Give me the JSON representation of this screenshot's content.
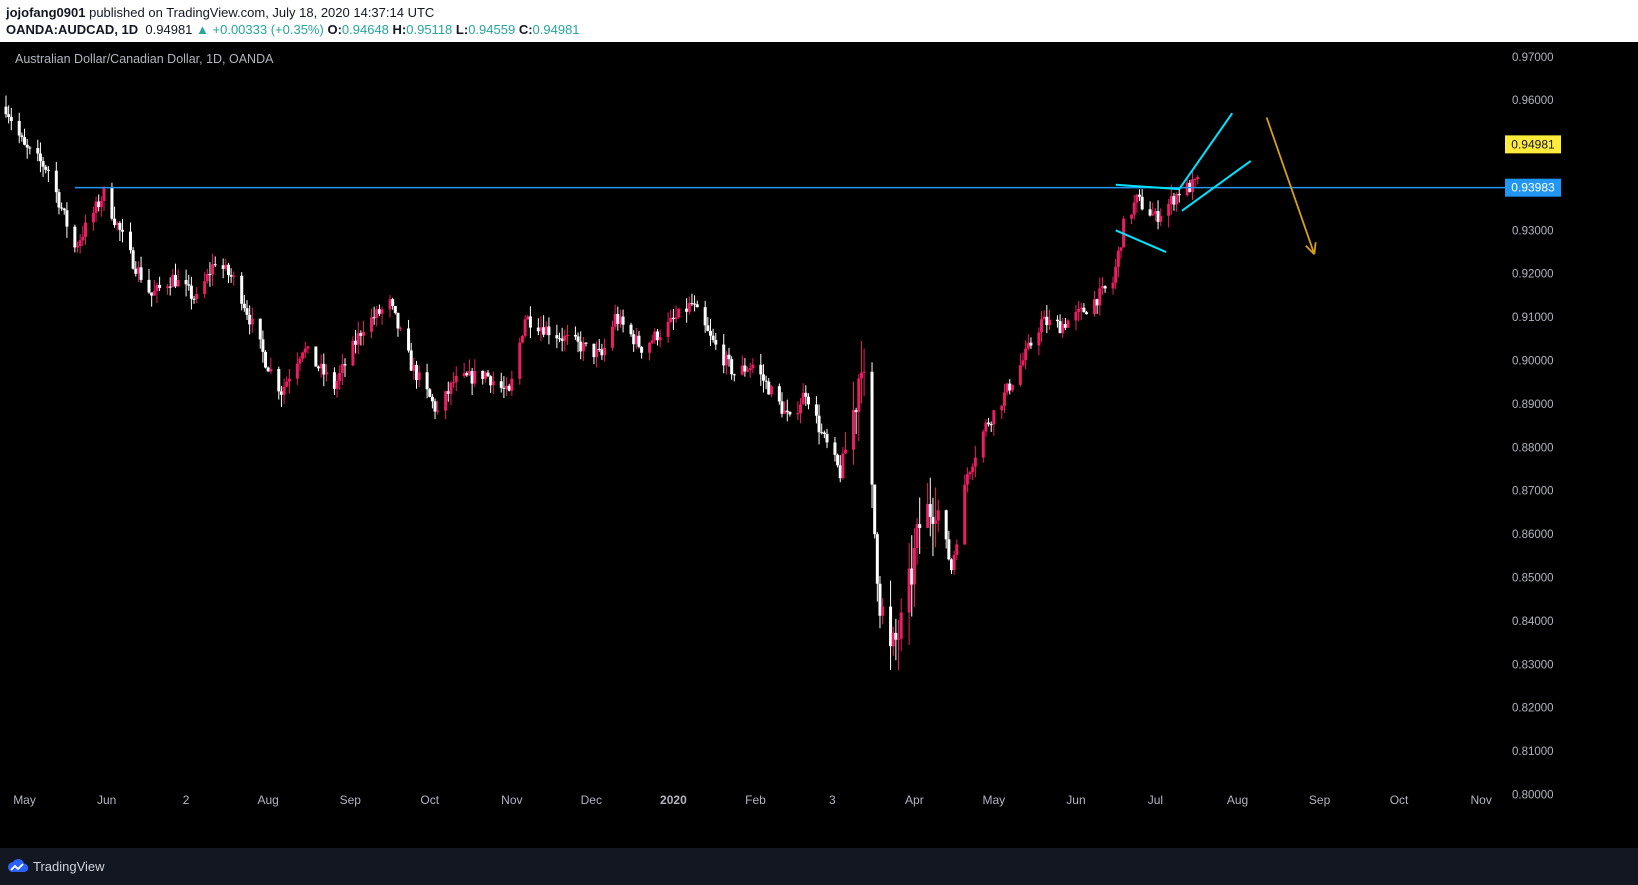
{
  "header": {
    "author": "jojofang0901",
    "published_text": "published on TradingView.com, July 18, 2020 14:37:14 UTC",
    "symbol": "OANDA:AUDCAD, 1D",
    "last": "0.94981",
    "change": "▲ +0.00333 (+0.35%)",
    "open_label": "O:",
    "open": "0.94648",
    "high_label": "H:",
    "high": "0.95118",
    "low_label": "L:",
    "low": "0.94559",
    "close_label": "C:",
    "close": "0.94981"
  },
  "chart_title": "Australian Dollar/Canadian Dollar, 1D, OANDA",
  "footer": {
    "brand": "TradingView",
    "logo_icon": "tradingview-cloud-icon"
  },
  "colors": {
    "up": "#e91e63",
    "down": "#ffffff",
    "hline": "#2196f3",
    "pattern": "#00e5ff",
    "arrow": "#d4a017",
    "last_price_bg": "#ffeb3b",
    "hline_label_bg": "#2196f3"
  },
  "chart_data": {
    "type": "candlestick",
    "title": "Australian Dollar/Canadian Dollar, 1D, OANDA",
    "ylim": [
      0.7955,
      0.9734
    ],
    "y_ticks": [
      "0.97000",
      "0.96000",
      "0.95000",
      "0.94000",
      "0.93000",
      "0.92000",
      "0.91000",
      "0.90000",
      "0.89000",
      "0.88000",
      "0.87000",
      "0.86000",
      "0.85000",
      "0.84000",
      "0.83000",
      "0.82000",
      "0.81000",
      "0.80000"
    ],
    "x_ticks": [
      "May",
      "Jun",
      "Jul",
      "Aug",
      "Sep",
      "Oct",
      "Nov",
      "Dec",
      "2020",
      "Feb",
      "Mar",
      "Apr",
      "May",
      "Jun",
      "Jul",
      "Aug",
      "Sep",
      "Oct",
      "Nov"
    ],
    "x_tick_display": [
      "May",
      "Jun",
      "2",
      "Aug",
      "Sep",
      "Oct",
      "Nov",
      "Dec",
      "2020",
      "Feb",
      "3",
      "Apr",
      "May",
      "Jun",
      "Jul",
      "Aug",
      "Sep",
      "Oct",
      "Nov"
    ],
    "x_tick_bold": [
      false,
      false,
      false,
      false,
      false,
      false,
      false,
      false,
      true,
      false,
      false,
      false,
      false,
      false,
      false,
      false,
      false,
      false,
      false
    ],
    "horizontal_line": {
      "value": 0.93983,
      "label": "0.93983"
    },
    "last_price": {
      "value": 0.94981,
      "label": "0.94981"
    },
    "trend_path": [
      [
        "2019-04-24",
        0.9585
      ],
      [
        "2019-05-01",
        0.949
      ],
      [
        "2019-05-10",
        0.944
      ],
      [
        "2019-05-20",
        0.926
      ],
      [
        "2019-05-31",
        0.9385
      ],
      [
        "2019-06-10",
        0.924
      ],
      [
        "2019-06-18",
        0.915
      ],
      [
        "2019-06-26",
        0.919
      ],
      [
        "2019-07-05",
        0.914
      ],
      [
        "2019-07-12",
        0.923
      ],
      [
        "2019-07-20",
        0.918
      ],
      [
        "2019-07-31",
        0.9
      ],
      [
        "2019-08-06",
        0.893
      ],
      [
        "2019-08-14",
        0.903
      ],
      [
        "2019-08-26",
        0.894
      ],
      [
        "2019-09-06",
        0.908
      ],
      [
        "2019-09-16",
        0.913
      ],
      [
        "2019-09-24",
        0.899
      ],
      [
        "2019-10-04",
        0.888
      ],
      [
        "2019-10-10",
        0.895
      ],
      [
        "2019-10-22",
        0.897
      ],
      [
        "2019-10-31",
        0.892
      ],
      [
        "2019-11-06",
        0.91
      ],
      [
        "2019-11-18",
        0.906
      ],
      [
        "2019-11-28",
        0.903
      ],
      [
        "2019-12-05",
        0.901
      ],
      [
        "2019-12-10",
        0.91
      ],
      [
        "2019-12-20",
        0.903
      ],
      [
        "2019-12-30",
        0.908
      ],
      [
        "2020-01-08",
        0.913
      ],
      [
        "2020-01-15",
        0.905
      ],
      [
        "2020-01-24",
        0.897
      ],
      [
        "2020-01-31",
        0.899
      ],
      [
        "2020-02-08",
        0.892
      ],
      [
        "2020-02-14",
        0.886
      ],
      [
        "2020-02-20",
        0.893
      ],
      [
        "2020-02-26",
        0.883
      ],
      [
        "2020-03-04",
        0.874
      ],
      [
        "2020-03-10",
        0.891
      ],
      [
        "2020-03-12",
        0.902
      ],
      [
        "2020-03-16",
        0.868
      ],
      [
        "2020-03-19",
        0.845
      ],
      [
        "2020-03-23",
        0.832
      ],
      [
        "2020-03-28",
        0.84
      ],
      [
        "2020-04-03",
        0.862
      ],
      [
        "2020-04-09",
        0.868
      ],
      [
        "2020-04-15",
        0.852
      ],
      [
        "2020-04-21",
        0.874
      ],
      [
        "2020-04-28",
        0.885
      ],
      [
        "2020-05-05",
        0.892
      ],
      [
        "2020-05-12",
        0.9
      ],
      [
        "2020-05-19",
        0.909
      ],
      [
        "2020-05-26",
        0.908
      ],
      [
        "2020-06-03",
        0.911
      ],
      [
        "2020-06-10",
        0.915
      ],
      [
        "2020-06-15",
        0.918
      ],
      [
        "2020-06-19",
        0.931
      ],
      [
        "2020-06-24",
        0.937
      ],
      [
        "2020-07-01",
        0.933
      ],
      [
        "2020-07-06",
        0.936
      ],
      [
        "2020-07-10",
        0.939
      ],
      [
        "2020-07-14",
        0.94
      ],
      [
        "2020-07-20",
        0.942
      ],
      [
        "2020-07-24",
        0.945
      ],
      [
        "2020-07-30",
        0.947
      ],
      [
        "2020-08-04",
        0.9498
      ]
    ],
    "drawings": {
      "flag_upper": [
        [
          "2020-06-16",
          0.9405
        ],
        [
          "2020-07-10",
          0.9395
        ]
      ],
      "flag_lower": [
        [
          "2020-06-16",
          0.93
        ],
        [
          "2020-07-05",
          0.925
        ]
      ],
      "wedge_upper": [
        [
          "2020-07-10",
          0.9395
        ],
        [
          "2020-07-30",
          0.957
        ]
      ],
      "wedge_lower": [
        [
          "2020-07-11",
          0.9345
        ],
        [
          "2020-08-06",
          0.946
        ]
      ],
      "forecast_arrow": [
        [
          "2020-08-12",
          0.956
        ],
        [
          "2020-08-30",
          0.9245
        ]
      ]
    }
  }
}
